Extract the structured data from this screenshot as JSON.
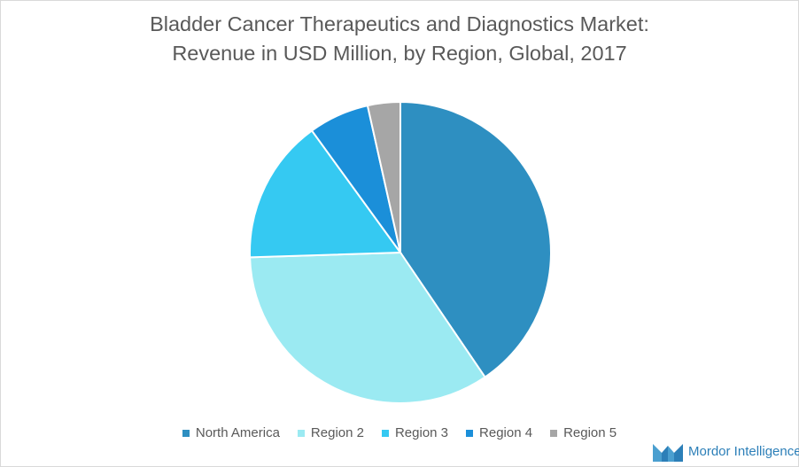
{
  "chart_data": {
    "type": "pie",
    "title_lines": [
      "Bladder Cancer Therapeutics and Diagnostics Market:",
      "Revenue in USD Million, by Region, Global, 2017"
    ],
    "categories": [
      "North America",
      "Region 2",
      "Region 3",
      "Region 4",
      "Region 5"
    ],
    "values": [
      40.5,
      34.0,
      15.5,
      6.5,
      3.5
    ],
    "colors": [
      "#2e8fc1",
      "#9beaf2",
      "#35c9f2",
      "#1b8fd9",
      "#a6a6a6"
    ],
    "legend_position": "bottom"
  },
  "branding": {
    "logo_text": "Mordor Intelligence",
    "logo_colors": [
      "#4a9fd0",
      "#2c7fb8"
    ]
  }
}
